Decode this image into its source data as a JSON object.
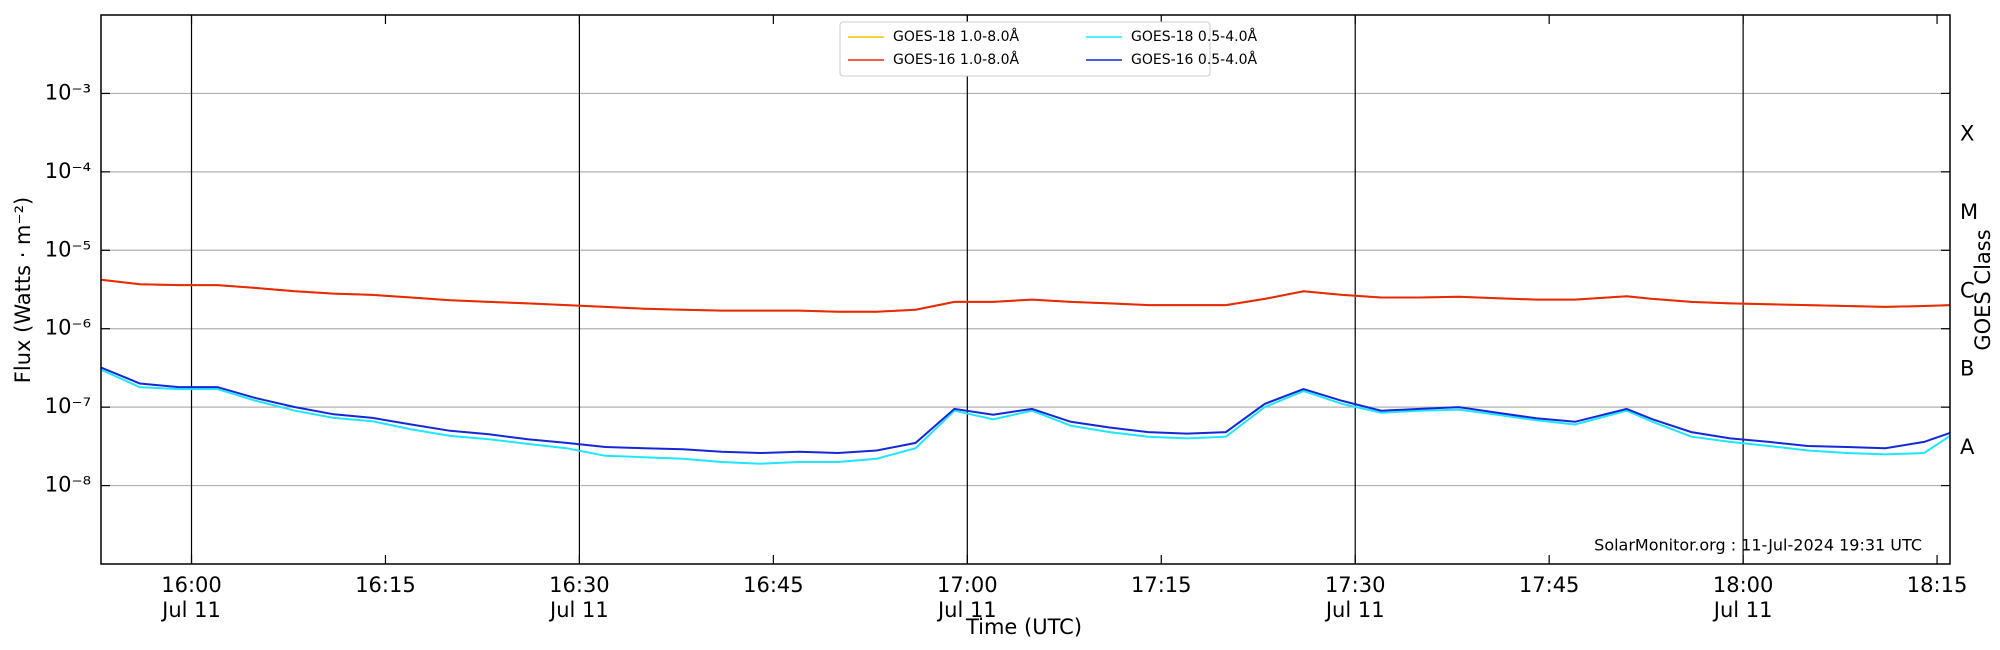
{
  "chart_data": {
    "type": "line",
    "xlabel": "Time (UTC)",
    "ylabel": "Flux (Watts · m⁻²)",
    "y2label": "GOES Class",
    "annotation": "SolarMonitor.org : 11-Jul-2024 19:31 UTC",
    "log_y": true,
    "grid": true,
    "legend": "upper center",
    "xlim": [
      "15:53",
      "18:16"
    ],
    "xticks": [
      {
        "value": "16:00",
        "label": "16:00\nJul 11"
      },
      {
        "value": "16:15",
        "label": "16:15"
      },
      {
        "value": "16:30",
        "label": "16:30\nJul 11"
      },
      {
        "value": "16:45",
        "label": "16:45"
      },
      {
        "value": "17:00",
        "label": "17:00\nJul 11"
      },
      {
        "value": "17:15",
        "label": "17:15"
      },
      {
        "value": "17:30",
        "label": "17:30\nJul 11"
      },
      {
        "value": "17:45",
        "label": "17:45"
      },
      {
        "value": "18:00",
        "label": "18:00\nJul 11"
      },
      {
        "value": "18:15",
        "label": "18:15"
      }
    ],
    "ylim": [
      1e-09,
      0.01
    ],
    "yticks": [
      {
        "value": 1e-08,
        "label": "10⁻⁸"
      },
      {
        "value": 1e-07,
        "label": "10⁻⁷"
      },
      {
        "value": 1e-06,
        "label": "10⁻⁶"
      },
      {
        "value": 1e-05,
        "label": "10⁻⁵"
      },
      {
        "value": 0.0001,
        "label": "10⁻⁴"
      },
      {
        "value": 0.001,
        "label": "10⁻³"
      }
    ],
    "y2lim": [
      1e-09,
      0.01
    ],
    "y2ticks": [
      {
        "value": 3e-08,
        "label": "A"
      },
      {
        "value": 3e-07,
        "label": "B"
      },
      {
        "value": 3e-06,
        "label": "C"
      },
      {
        "value": 3e-05,
        "label": "M"
      },
      {
        "value": 0.0003,
        "label": "X"
      }
    ],
    "x": [
      "15:53",
      "15:56",
      "15:59",
      "16:02",
      "16:05",
      "16:08",
      "16:11",
      "16:14",
      "16:17",
      "16:20",
      "16:23",
      "16:26",
      "16:29",
      "16:32",
      "16:35",
      "16:38",
      "16:41",
      "16:44",
      "16:47",
      "16:50",
      "16:53",
      "16:56",
      "16:59",
      "17:02",
      "17:05",
      "17:08",
      "17:11",
      "17:14",
      "17:17",
      "17:20",
      "17:23",
      "17:26",
      "17:29",
      "17:32",
      "17:35",
      "17:38",
      "17:41",
      "17:44",
      "17:47",
      "17:51",
      "17:53",
      "17:56",
      "17:59",
      "18:02",
      "18:05",
      "18:08",
      "18:11",
      "18:14",
      "18:16"
    ],
    "series": [
      {
        "name": "GOES-18 1.0-8.0Å",
        "color": "#f2c600",
        "values": [
          4.2e-06,
          3.7e-06,
          3.6e-06,
          3.6e-06,
          3.3e-06,
          3e-06,
          2.8e-06,
          2.7e-06,
          2.5e-06,
          2.3e-06,
          2.2e-06,
          2.1e-06,
          2e-06,
          1.9e-06,
          1.8e-06,
          1.75e-06,
          1.7e-06,
          1.7e-06,
          1.7e-06,
          1.65e-06,
          1.65e-06,
          1.75e-06,
          2.2e-06,
          2.2e-06,
          2.35e-06,
          2.2e-06,
          2.1e-06,
          2e-06,
          2e-06,
          2e-06,
          2.4e-06,
          3e-06,
          2.7e-06,
          2.5e-06,
          2.5e-06,
          2.55e-06,
          2.45e-06,
          2.35e-06,
          2.35e-06,
          2.6e-06,
          2.4e-06,
          2.2e-06,
          2.1e-06,
          2.05e-06,
          2e-06,
          1.95e-06,
          1.9e-06,
          1.95e-06,
          2e-06
        ]
      },
      {
        "name": "GOES-16 1.0-8.0Å",
        "color": "#e8280c",
        "values": [
          4.2e-06,
          3.7e-06,
          3.6e-06,
          3.6e-06,
          3.3e-06,
          3e-06,
          2.8e-06,
          2.7e-06,
          2.5e-06,
          2.3e-06,
          2.2e-06,
          2.1e-06,
          2e-06,
          1.9e-06,
          1.8e-06,
          1.75e-06,
          1.7e-06,
          1.7e-06,
          1.7e-06,
          1.65e-06,
          1.65e-06,
          1.75e-06,
          2.2e-06,
          2.2e-06,
          2.35e-06,
          2.2e-06,
          2.1e-06,
          2e-06,
          2e-06,
          2e-06,
          2.4e-06,
          3e-06,
          2.7e-06,
          2.5e-06,
          2.5e-06,
          2.55e-06,
          2.45e-06,
          2.35e-06,
          2.35e-06,
          2.6e-06,
          2.4e-06,
          2.2e-06,
          2.1e-06,
          2.05e-06,
          2e-06,
          1.95e-06,
          1.9e-06,
          1.95e-06,
          2e-06
        ]
      },
      {
        "name": "GOES-18 0.5-4.0Å",
        "color": "#1ee6ff",
        "values": [
          3e-07,
          1.8e-07,
          1.7e-07,
          1.7e-07,
          1.2e-07,
          9e-08,
          7.3e-08,
          6.6e-08,
          5.2e-08,
          4.3e-08,
          3.9e-08,
          3.4e-08,
          3e-08,
          2.4e-08,
          2.3e-08,
          2.2e-08,
          2e-08,
          1.9e-08,
          2e-08,
          2e-08,
          2.2e-08,
          3e-08,
          9e-08,
          7e-08,
          9e-08,
          5.8e-08,
          4.8e-08,
          4.2e-08,
          4e-08,
          4.2e-08,
          1e-07,
          1.6e-07,
          1.1e-07,
          8.5e-08,
          9e-08,
          9.3e-08,
          8e-08,
          6.8e-08,
          6e-08,
          9e-08,
          6.5e-08,
          4.2e-08,
          3.6e-08,
          3.2e-08,
          2.8e-08,
          2.6e-08,
          2.5e-08,
          2.6e-08,
          4.3e-08
        ]
      },
      {
        "name": "GOES-16 0.5-4.0Å",
        "color": "#1428d8",
        "values": [
          3.2e-07,
          2e-07,
          1.8e-07,
          1.8e-07,
          1.3e-07,
          1e-07,
          8.1e-08,
          7.3e-08,
          6e-08,
          5e-08,
          4.5e-08,
          3.9e-08,
          3.5e-08,
          3.1e-08,
          3e-08,
          2.9e-08,
          2.7e-08,
          2.6e-08,
          2.7e-08,
          2.6e-08,
          2.8e-08,
          3.5e-08,
          9.5e-08,
          8e-08,
          9.5e-08,
          6.5e-08,
          5.5e-08,
          4.8e-08,
          4.6e-08,
          4.8e-08,
          1.1e-07,
          1.7e-07,
          1.2e-07,
          9e-08,
          9.5e-08,
          1e-07,
          8.5e-08,
          7.2e-08,
          6.5e-08,
          9.5e-08,
          7e-08,
          4.8e-08,
          4e-08,
          3.6e-08,
          3.2e-08,
          3.1e-08,
          3e-08,
          3.6e-08,
          4.7e-08
        ]
      }
    ]
  }
}
